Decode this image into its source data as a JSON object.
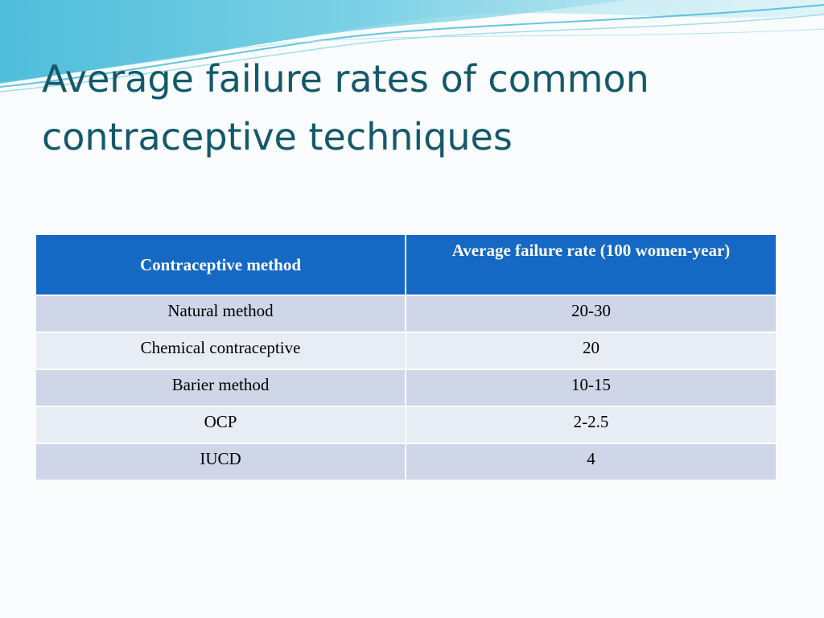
{
  "slide": {
    "title": "Average failure rates of common contraceptive techniques"
  },
  "table": {
    "headers": [
      "Contraceptive method",
      "Average failure rate (100 women-year)"
    ],
    "rows": [
      {
        "method": "Natural method",
        "rate": "20-30"
      },
      {
        "method": "Chemical contraceptive",
        "rate": "20"
      },
      {
        "method": "Barier method",
        "rate": "10-15"
      },
      {
        "method": "OCP",
        "rate": "2-2.5"
      },
      {
        "method": "IUCD",
        "rate": "4"
      }
    ]
  },
  "colors": {
    "title": "#13596a",
    "header_bg": "#1568c4",
    "row_odd": "#cfd6e8",
    "row_even": "#e8ecf4",
    "wave_light": "#bfe9f2",
    "wave_dark": "#5fc4de"
  }
}
